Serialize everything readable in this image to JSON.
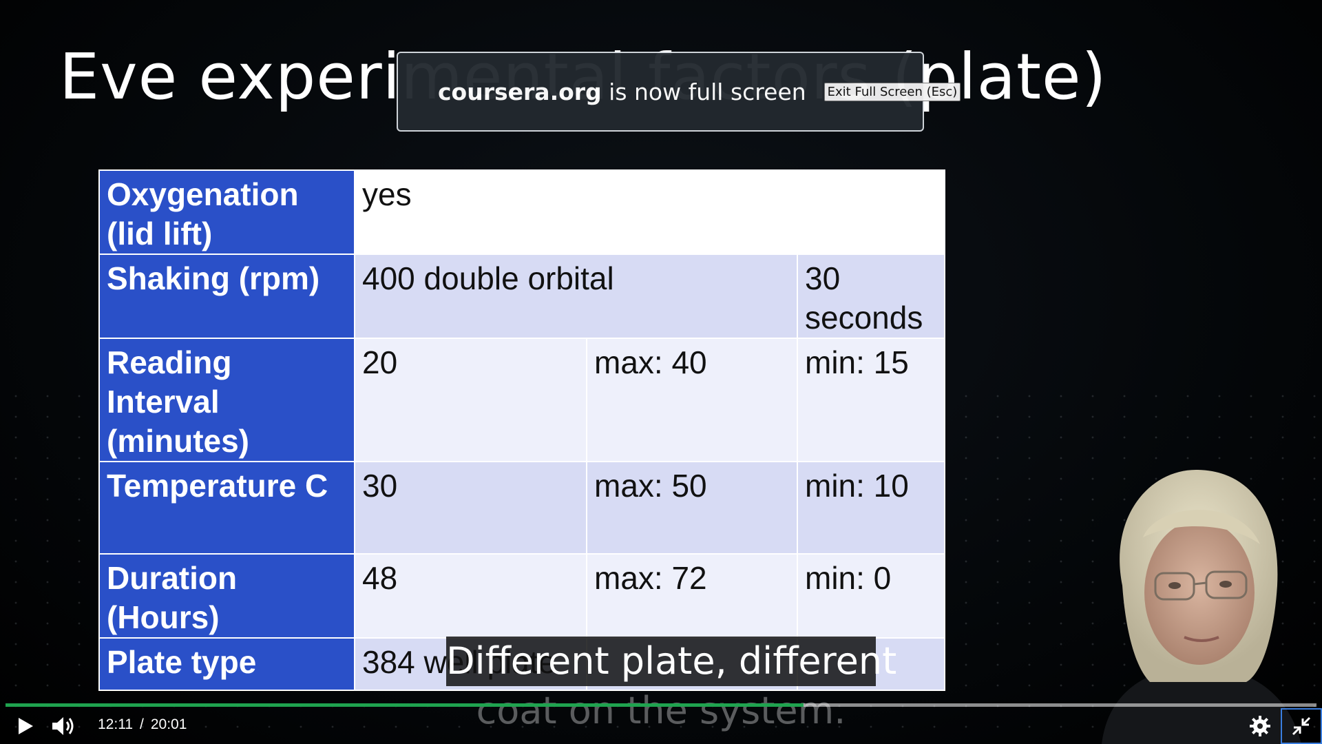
{
  "slide": {
    "title": "Eve experimental factors (plate)"
  },
  "table": {
    "rows": [
      {
        "label": "Oxygenation (lid lift)",
        "c1": "yes",
        "c2": "",
        "c3": ""
      },
      {
        "label": "Shaking (rpm)",
        "c1": "400 double orbital",
        "c2": "",
        "c3": "30 seconds"
      },
      {
        "label": "Reading Interval (minutes)",
        "c1": "20",
        "c2": "max: 40",
        "c3": "min: 15"
      },
      {
        "label": "Temperature C",
        "c1": "30",
        "c2": "max: 50",
        "c3": "min: 10"
      },
      {
        "label": "Duration (Hours)",
        "c1": "48",
        "c2": "max: 72",
        "c3": "min: 0"
      },
      {
        "label": "Plate type",
        "c1": "384 well plate",
        "c2": "",
        "c3": ""
      }
    ]
  },
  "fullscreen_notice": {
    "domain": "coursera.org",
    "message": " is now full screen",
    "exit_label": "Exit Full Screen (Esc)"
  },
  "captions": {
    "line1": "Different plate, different",
    "line2": "coat on the system."
  },
  "player": {
    "current_time": "12:11",
    "separator": "/",
    "duration": "20:01",
    "progress": 0.6086,
    "accent_color": "#1fa34f",
    "icons": [
      "play-icon",
      "volume-icon",
      "settings-gear-icon",
      "exit-fullscreen-icon"
    ]
  }
}
